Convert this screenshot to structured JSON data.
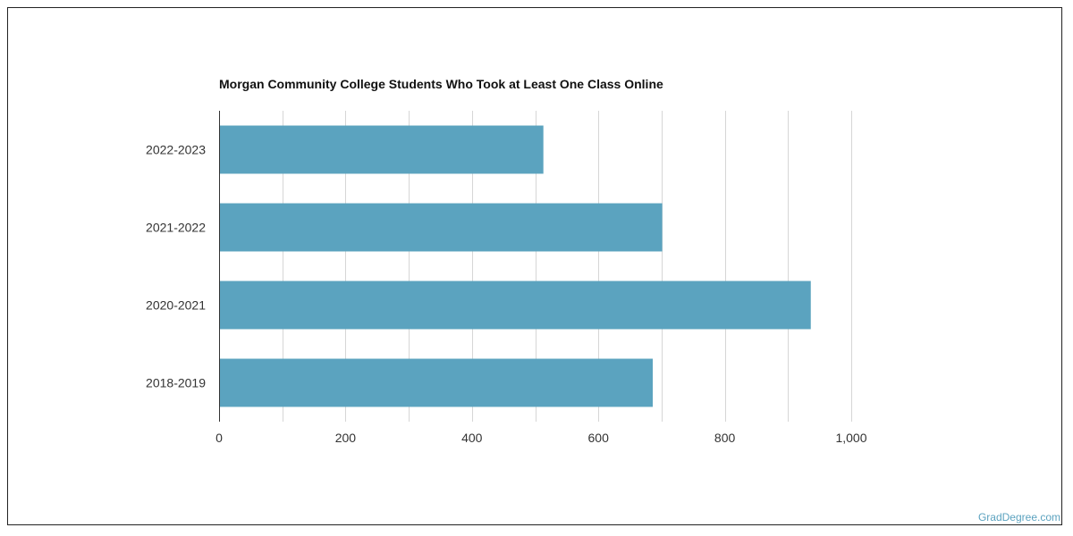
{
  "chart_data": {
    "type": "bar",
    "orientation": "horizontal",
    "title": "Morgan Community College Students Who Took at Least One Class Online",
    "categories": [
      "2022-2023",
      "2021-2022",
      "2020-2021",
      "2018-2019"
    ],
    "values": [
      513,
      701,
      936,
      686
    ],
    "xlim": [
      0,
      1000
    ],
    "x_ticks": [
      0,
      200,
      400,
      600,
      800,
      1000
    ],
    "x_tick_labels": [
      "0",
      "200",
      "400",
      "600",
      "800",
      "1,000"
    ],
    "xlabel": "",
    "ylabel": "",
    "grid": true,
    "bar_color": "#5ba3bf"
  },
  "watermark": "GradDegree.com"
}
